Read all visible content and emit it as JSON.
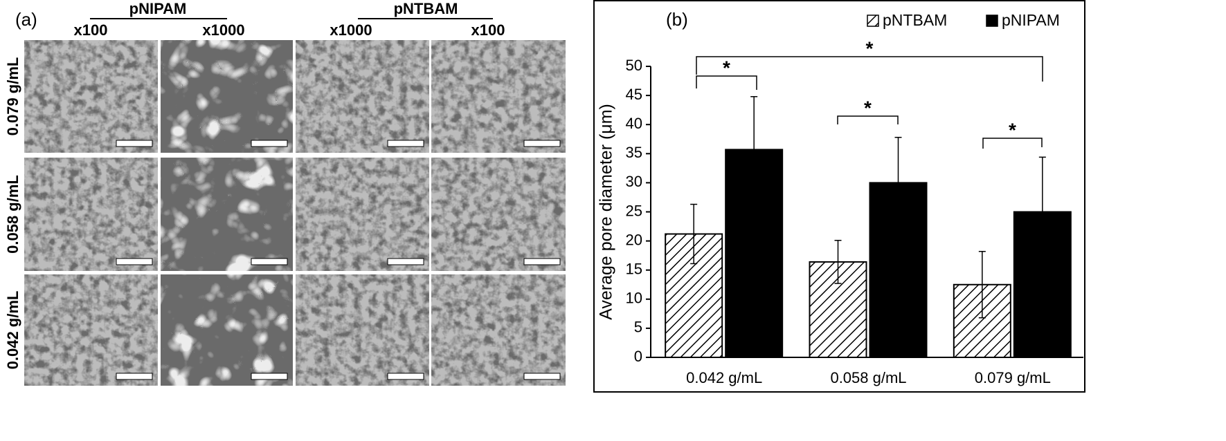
{
  "panel_a": {
    "label": "(a)",
    "groups": [
      "pNIPAM",
      "pNTBAM"
    ],
    "columns": [
      "x100",
      "x1000",
      "x1000",
      "x100"
    ],
    "rows": [
      "0.079 g/mL",
      "0.058 g/mL",
      "0.042 g/mL"
    ]
  },
  "chart_data": {
    "type": "bar",
    "panel_label": "(b)",
    "y_label": "Average pore diameter (μm)",
    "categories": [
      "0.042 g/mL",
      "0.058 g/mL",
      "0.079 g/mL"
    ],
    "series": [
      {
        "name": "pNTBAM",
        "color": "#000000",
        "pattern": "hatch",
        "values": [
          21.2,
          16.4,
          12.5
        ],
        "errors": [
          5.1,
          3.7,
          5.7
        ]
      },
      {
        "name": "pNIPAM",
        "color": "#000000",
        "pattern": "solid",
        "values": [
          35.7,
          30,
          25
        ],
        "errors": [
          9.1,
          7.8,
          9.4
        ]
      }
    ],
    "annotations": [
      "*",
      "*",
      "*",
      "*"
    ],
    "ylim": [
      0,
      50
    ],
    "yticks": [
      0,
      5,
      10,
      15,
      20,
      25,
      30,
      35,
      40,
      45,
      50
    ],
    "legend": "top-right"
  }
}
